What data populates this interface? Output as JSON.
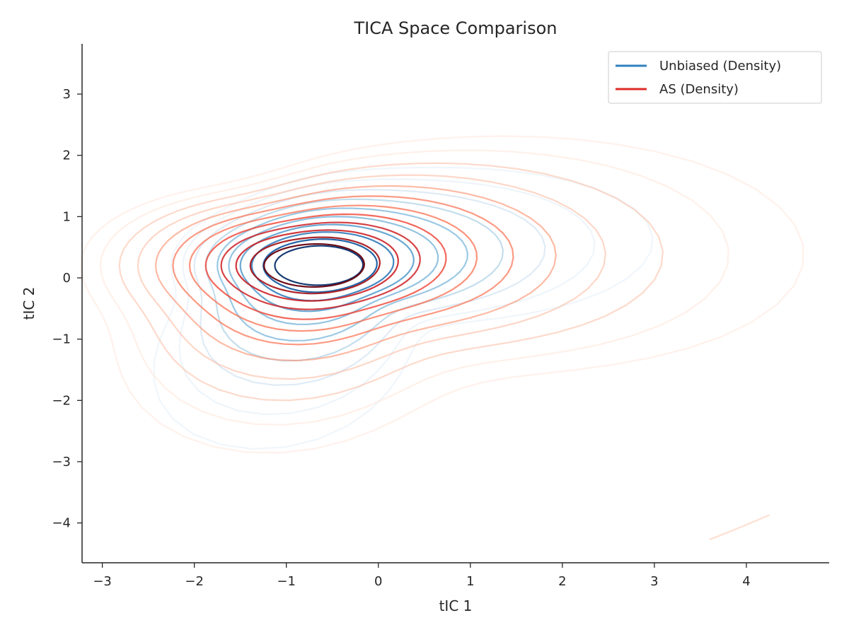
{
  "chart_data": {
    "type": "contour",
    "title": "TICA Space Comparison",
    "xlabel": "tIC 1",
    "ylabel": "tIC 2",
    "xlim": [
      -3.22,
      4.9
    ],
    "ylim": [
      -4.65,
      3.82
    ],
    "xticks": [
      -3,
      -2,
      -1,
      0,
      1,
      2,
      3,
      4
    ],
    "yticks": [
      -4,
      -3,
      -2,
      -1,
      0,
      1,
      2,
      3
    ],
    "grid": false,
    "legend": {
      "placement": "top-right"
    },
    "series": [
      {
        "name": "Unbiased (Density)",
        "color": "#3182bd",
        "colormap": "Blues",
        "peak": [
          -0.65,
          0.2
        ],
        "secondary_peaks": [
          [
            -0.3,
            -2.0
          ],
          [
            2.1,
            -0.3
          ]
        ],
        "levels": 10
      },
      {
        "name": "AS (Density)",
        "color": "#de2d26",
        "colormap": "Reds",
        "peak": [
          -0.7,
          0.2
        ],
        "secondary_peaks": [
          [
            0.6,
            1.2
          ],
          [
            2.2,
            -0.3
          ],
          [
            -0.2,
            -1.6
          ]
        ],
        "levels": 12
      }
    ]
  }
}
